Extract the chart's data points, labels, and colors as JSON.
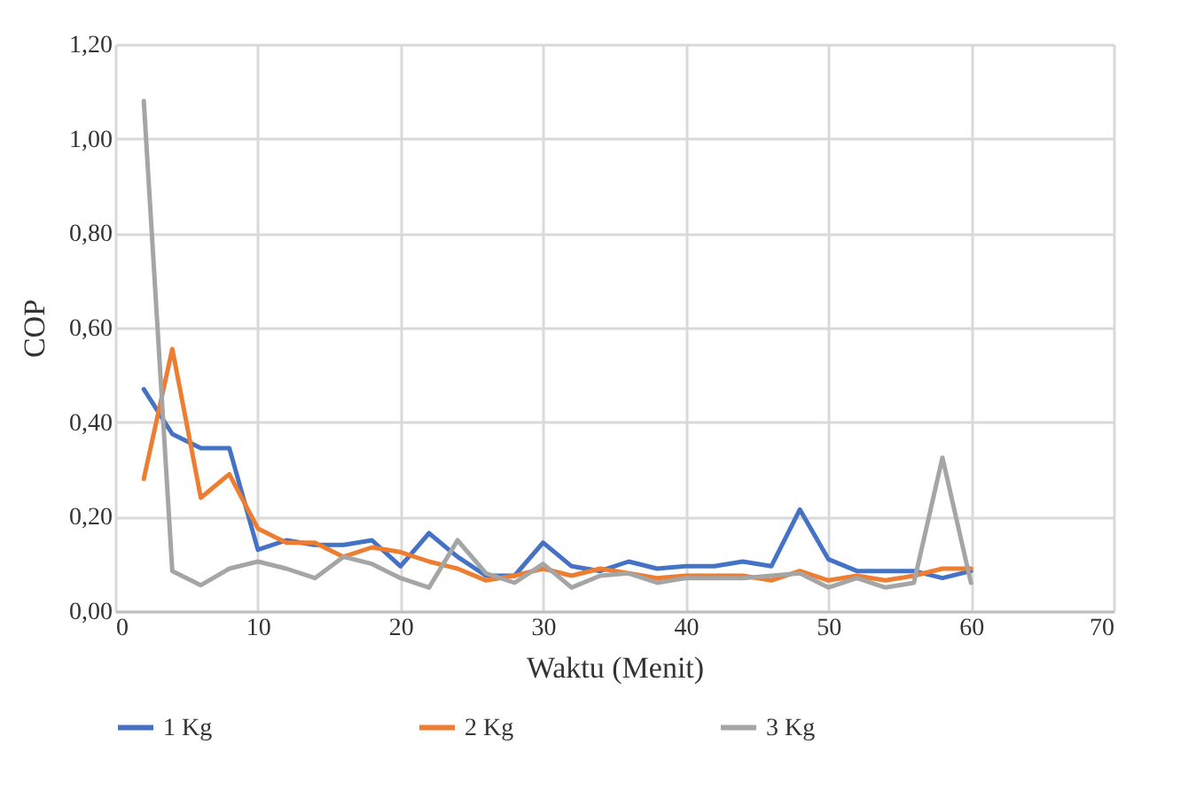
{
  "chart_data": {
    "type": "line",
    "xlabel": "Waktu (Menit)",
    "ylabel": "COP",
    "x": [
      2,
      4,
      6,
      8,
      10,
      12,
      14,
      16,
      18,
      20,
      22,
      24,
      26,
      28,
      30,
      32,
      34,
      36,
      38,
      40,
      42,
      44,
      46,
      48,
      50,
      52,
      54,
      56,
      58,
      60
    ],
    "series": [
      {
        "name": "1 Kg",
        "color": "#4472c4",
        "values": [
          0.47,
          0.375,
          0.345,
          0.345,
          0.13,
          0.15,
          0.14,
          0.14,
          0.15,
          0.095,
          0.165,
          0.115,
          0.075,
          0.075,
          0.145,
          0.095,
          0.085,
          0.105,
          0.09,
          0.095,
          0.095,
          0.105,
          0.095,
          0.215,
          0.11,
          0.085,
          0.085,
          0.085,
          0.07,
          0.085
        ]
      },
      {
        "name": "2 Kg",
        "color": "#ed7d31",
        "values": [
          0.28,
          0.555,
          0.24,
          0.29,
          0.175,
          0.145,
          0.145,
          0.115,
          0.135,
          0.125,
          0.105,
          0.09,
          0.065,
          0.075,
          0.09,
          0.075,
          0.09,
          0.08,
          0.07,
          0.075,
          0.075,
          0.075,
          0.065,
          0.085,
          0.065,
          0.075,
          0.065,
          0.075,
          0.09,
          0.09
        ]
      },
      {
        "name": "3 Kg",
        "color": "#a5a5a5",
        "values": [
          1.08,
          0.085,
          0.055,
          0.09,
          0.105,
          0.09,
          0.07,
          0.115,
          0.1,
          0.07,
          0.05,
          0.15,
          0.08,
          0.06,
          0.1,
          0.05,
          0.075,
          0.08,
          0.06,
          0.07,
          0.07,
          0.07,
          0.075,
          0.08,
          0.05,
          0.07,
          0.05,
          0.06,
          0.325,
          0.06
        ]
      }
    ],
    "xlim": [
      0,
      70
    ],
    "xticks": [
      0,
      10,
      20,
      30,
      40,
      50,
      60,
      70
    ],
    "ylim": [
      0,
      1.2
    ],
    "yticks": [
      {
        "value": 0,
        "label": "0,00"
      },
      {
        "value": 0.2,
        "label": "0,20"
      },
      {
        "value": 0.4,
        "label": "0,40"
      },
      {
        "value": 0.6,
        "label": "0,60"
      },
      {
        "value": 0.8,
        "label": "0,80"
      },
      {
        "value": 1.0,
        "label": "1,00"
      },
      {
        "value": 1.2,
        "label": "1,20"
      }
    ],
    "grid": true,
    "legend": "bottom",
    "marker": "none",
    "line_style": "solid"
  }
}
